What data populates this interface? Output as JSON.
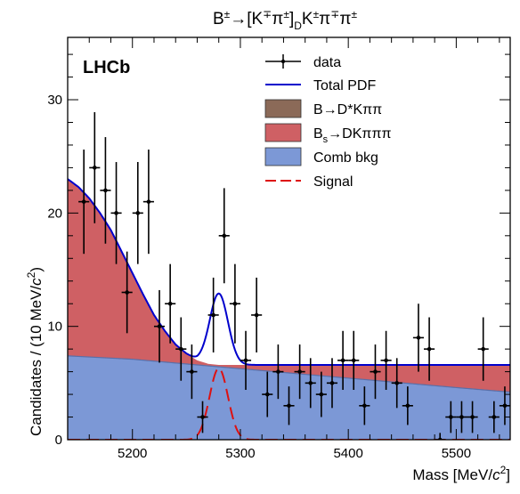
{
  "chart_data": {
    "type": "scatter",
    "title": "B±→[K∓π±]DK±π∓π±",
    "title_parts": {
      "main": "B",
      "main_sup": "±",
      "arrow": "→[K",
      "k_sup": "∓",
      "pi1": "π",
      "pi1_sup": "±",
      "bracket": "]",
      "d_sub": "D",
      "k2": "K",
      "k2_sup": "±",
      "pi2": "π",
      "pi2_sup": "∓",
      "pi3": "π",
      "pi3_sup": "±"
    },
    "experiment_label": "LHCb",
    "xlabel": "Mass [MeV/c²]",
    "xlabel_parts": {
      "pre": "Mass [MeV/",
      "c": "c",
      "sup": "2",
      "post": "]"
    },
    "ylabel": "Candidates / (10 MeV/c²)",
    "ylabel_parts": {
      "pre": "Candidates / (10 MeV/",
      "c": "c",
      "sup": "2",
      "post": ")"
    },
    "xlim": [
      5140,
      5550
    ],
    "ylim": [
      0,
      35.5
    ],
    "x_ticks": [
      "5200",
      "5300",
      "5400",
      "5500"
    ],
    "y_ticks": [
      "0",
      "10",
      "20",
      "30"
    ],
    "legend_position": "top-right",
    "legend": {
      "data": "data",
      "total": "Total PDF",
      "bdstar": "B→D*Kππ",
      "bs_pre": "B",
      "bs_sub": "s",
      "bs_post": "→DKπππ",
      "comb": "Comb bkg",
      "signal": "Signal"
    },
    "colors": {
      "total": "#0000cc",
      "bdstar": "#8b6a58",
      "bs": "#cf6064",
      "comb": "#7c98d6",
      "signal": "#dd1111",
      "data": "#000000"
    },
    "data_points": [
      {
        "x": 5155,
        "y": 21,
        "err": 4.6
      },
      {
        "x": 5165,
        "y": 24,
        "err": 4.9
      },
      {
        "x": 5175,
        "y": 22,
        "err": 4.7
      },
      {
        "x": 5185,
        "y": 20,
        "err": 4.5
      },
      {
        "x": 5195,
        "y": 13,
        "err": 3.6
      },
      {
        "x": 5205,
        "y": 20,
        "err": 4.5
      },
      {
        "x": 5215,
        "y": 21,
        "err": 4.6
      },
      {
        "x": 5225,
        "y": 10,
        "err": 3.2
      },
      {
        "x": 5235,
        "y": 12,
        "err": 3.5
      },
      {
        "x": 5245,
        "y": 8,
        "err": 2.8
      },
      {
        "x": 5255,
        "y": 6,
        "err": 2.4
      },
      {
        "x": 5265,
        "y": 2,
        "err": 1.4
      },
      {
        "x": 5275,
        "y": 11,
        "err": 3.3
      },
      {
        "x": 5285,
        "y": 18,
        "err": 4.2
      },
      {
        "x": 5295,
        "y": 12,
        "err": 3.5
      },
      {
        "x": 5305,
        "y": 7,
        "err": 2.6
      },
      {
        "x": 5315,
        "y": 11,
        "err": 3.3
      },
      {
        "x": 5325,
        "y": 4,
        "err": 2.0
      },
      {
        "x": 5335,
        "y": 6,
        "err": 2.4
      },
      {
        "x": 5345,
        "y": 3,
        "err": 1.7
      },
      {
        "x": 5355,
        "y": 6,
        "err": 2.4
      },
      {
        "x": 5365,
        "y": 5,
        "err": 2.2
      },
      {
        "x": 5375,
        "y": 4,
        "err": 2.0
      },
      {
        "x": 5385,
        "y": 5,
        "err": 2.2
      },
      {
        "x": 5395,
        "y": 7,
        "err": 2.6
      },
      {
        "x": 5405,
        "y": 7,
        "err": 2.6
      },
      {
        "x": 5415,
        "y": 3,
        "err": 1.7
      },
      {
        "x": 5425,
        "y": 6,
        "err": 2.4
      },
      {
        "x": 5435,
        "y": 7,
        "err": 2.6
      },
      {
        "x": 5445,
        "y": 5,
        "err": 2.2
      },
      {
        "x": 5455,
        "y": 3,
        "err": 1.7
      },
      {
        "x": 5465,
        "y": 9,
        "err": 3.0
      },
      {
        "x": 5475,
        "y": 8,
        "err": 2.8
      },
      {
        "x": 5485,
        "y": 0,
        "err": 0.6
      },
      {
        "x": 5495,
        "y": 2,
        "err": 1.4
      },
      {
        "x": 5505,
        "y": 2,
        "err": 1.4
      },
      {
        "x": 5515,
        "y": 2,
        "err": 1.4
      },
      {
        "x": 5525,
        "y": 8,
        "err": 2.8
      },
      {
        "x": 5535,
        "y": 2,
        "err": 1.4
      },
      {
        "x": 5545,
        "y": 3,
        "err": 1.7
      }
    ],
    "x_bin_half_width": 5,
    "components": {
      "comb_bkg": {
        "x": [
          5140,
          5200,
          5260,
          5320,
          5380,
          5440,
          5500,
          5550
        ],
        "y": [
          7.4,
          7.1,
          6.6,
          6.1,
          5.6,
          5.1,
          4.6,
          4.2
        ]
      },
      "bs_to_dkpipipi": {
        "x": [
          5140,
          5150,
          5160,
          5170,
          5180,
          5190,
          5200,
          5210,
          5220,
          5230,
          5240,
          5250,
          5260,
          5270,
          5280
        ],
        "y": [
          23.0,
          22.3,
          21.3,
          20.0,
          18.5,
          16.6,
          14.7,
          12.8,
          11.0,
          9.6,
          8.4,
          7.6,
          7.0,
          6.7,
          6.6
        ]
      },
      "b_to_dstar_kpipi": {
        "x": [
          5140,
          5550
        ],
        "y": [
          0,
          0
        ]
      },
      "signal": {
        "mean": 5280,
        "sigma": 8.5,
        "amplitude": 6.3
      }
    }
  }
}
